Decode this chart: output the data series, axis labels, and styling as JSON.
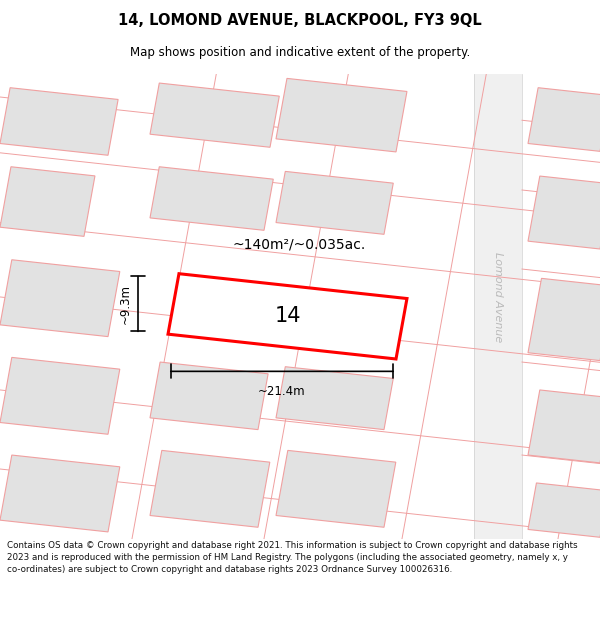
{
  "title": "14, LOMOND AVENUE, BLACKPOOL, FY3 9QL",
  "subtitle": "Map shows position and indicative extent of the property.",
  "footer": "Contains OS data © Crown copyright and database right 2021. This information is subject to Crown copyright and database rights 2023 and is reproduced with the permission of HM Land Registry. The polygons (including the associated geometry, namely x, y co-ordinates) are subject to Crown copyright and database rights 2023 Ordnance Survey 100026316.",
  "area_text": "~140m²/~0.035ac.",
  "plot_label": "14",
  "dim_width": "~21.4m",
  "dim_height": "~9.3m",
  "street_name": "Lomond Avenue",
  "map_bg": "#f8f8f8",
  "bg_color": "#ffffff",
  "block_face": "#e2e2e2",
  "block_edge": "#f0a0a0",
  "plot_edge": "#ff0000",
  "street_color": "#bbbbbb",
  "road_color": "#eeeeee"
}
